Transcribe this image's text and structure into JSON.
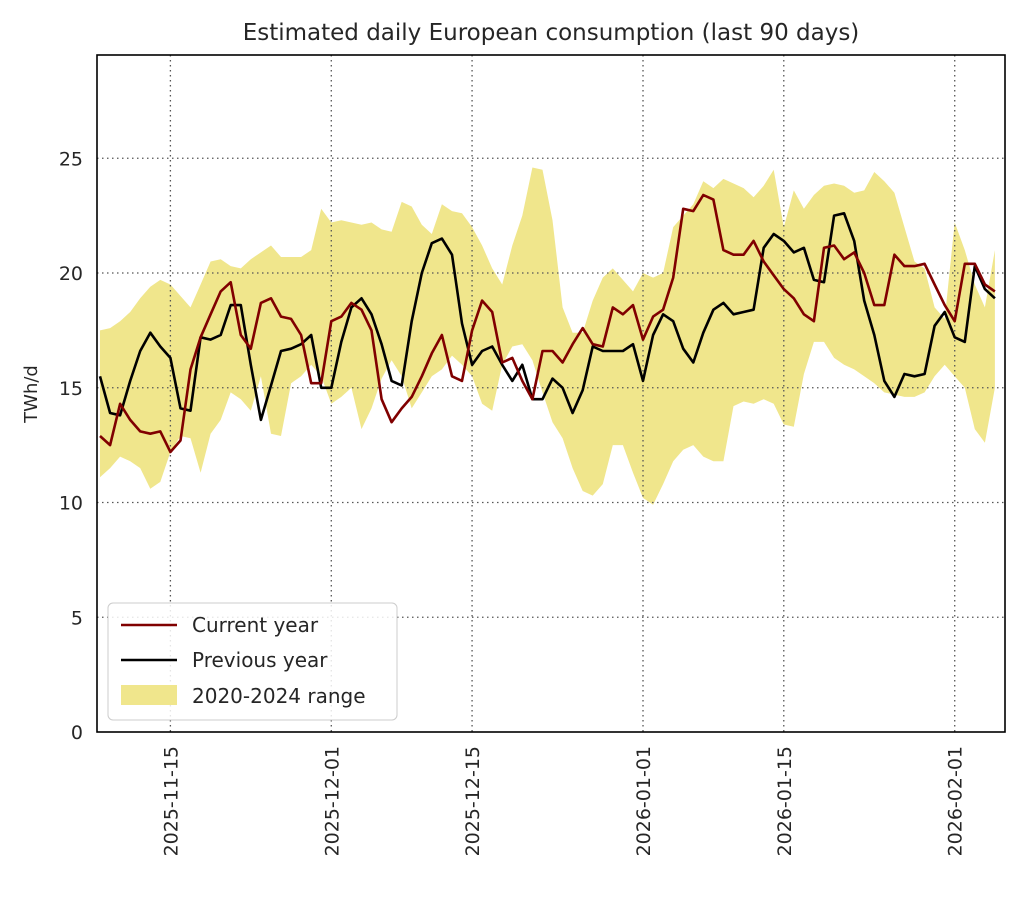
{
  "chart_data": {
    "type": "line",
    "title": "Estimated daily European consumption (last 90 days)",
    "xlabel": "",
    "ylabel": "TWh/d",
    "ylim": [
      0,
      29.5
    ],
    "xlim": [
      "2025-11-08",
      "2026-02-06"
    ],
    "yticks": [
      "0",
      "5",
      "10",
      "15",
      "20",
      "25"
    ],
    "xticks": [
      "2025-11-15",
      "2025-12-01",
      "2025-12-15",
      "2026-01-01",
      "2026-01-15",
      "2026-02-01"
    ],
    "grid": true,
    "legend_position": "bottom-left",
    "x": [
      "2025-11-08",
      "2025-11-09",
      "2025-11-10",
      "2025-11-11",
      "2025-11-12",
      "2025-11-13",
      "2025-11-14",
      "2025-11-15",
      "2025-11-16",
      "2025-11-17",
      "2025-11-18",
      "2025-11-19",
      "2025-11-20",
      "2025-11-21",
      "2025-11-22",
      "2025-11-23",
      "2025-11-24",
      "2025-11-25",
      "2025-11-26",
      "2025-11-27",
      "2025-11-28",
      "2025-11-29",
      "2025-11-30",
      "2025-12-01",
      "2025-12-02",
      "2025-12-03",
      "2025-12-04",
      "2025-12-05",
      "2025-12-06",
      "2025-12-07",
      "2025-12-08",
      "2025-12-09",
      "2025-12-10",
      "2025-12-11",
      "2025-12-12",
      "2025-12-13",
      "2025-12-14",
      "2025-12-15",
      "2025-12-16",
      "2025-12-17",
      "2025-12-18",
      "2025-12-19",
      "2025-12-20",
      "2025-12-21",
      "2025-12-22",
      "2025-12-23",
      "2025-12-24",
      "2025-12-25",
      "2025-12-26",
      "2025-12-27",
      "2025-12-28",
      "2025-12-29",
      "2025-12-30",
      "2025-12-31",
      "2026-01-01",
      "2026-01-02",
      "2026-01-03",
      "2026-01-04",
      "2026-01-05",
      "2026-01-06",
      "2026-01-07",
      "2026-01-08",
      "2026-01-09",
      "2026-01-10",
      "2026-01-11",
      "2026-01-12",
      "2026-01-13",
      "2026-01-14",
      "2026-01-15",
      "2026-01-16",
      "2026-01-17",
      "2026-01-18",
      "2026-01-19",
      "2026-01-20",
      "2026-01-21",
      "2026-01-22",
      "2026-01-23",
      "2026-01-24",
      "2026-01-25",
      "2026-01-26",
      "2026-01-27",
      "2026-01-28",
      "2026-01-29",
      "2026-01-30",
      "2026-01-31",
      "2026-02-01",
      "2026-02-02",
      "2026-02-03",
      "2026-02-04",
      "2026-02-05"
    ],
    "series": [
      {
        "name": "Current year",
        "color": "#800000",
        "values": [
          12.9,
          12.5,
          14.3,
          13.6,
          13.1,
          13.0,
          13.1,
          12.2,
          12.7,
          15.8,
          17.2,
          18.2,
          19.2,
          19.6,
          17.3,
          16.7,
          18.7,
          18.9,
          18.1,
          18.0,
          17.3,
          15.2,
          15.2,
          17.9,
          18.1,
          18.7,
          18.4,
          17.5,
          14.5,
          13.5,
          14.1,
          14.6,
          15.5,
          16.5,
          17.3,
          15.5,
          15.3,
          17.5,
          18.8,
          18.3,
          16.1,
          16.3,
          15.3,
          14.5,
          16.6,
          16.6,
          16.1,
          16.9,
          17.6,
          16.9,
          16.8,
          18.5,
          18.2,
          18.6,
          17.1,
          18.1,
          18.4,
          19.8,
          22.8,
          22.7,
          23.4,
          23.2,
          21.0,
          20.8,
          20.8,
          21.4,
          20.5,
          19.9,
          19.3,
          18.9,
          18.2,
          17.9,
          21.1,
          21.2,
          20.6,
          20.9,
          20.0,
          18.6,
          18.6,
          20.8,
          20.3,
          20.3,
          20.4,
          19.5,
          18.6,
          17.9,
          20.4,
          20.4,
          19.5,
          19.2
        ]
      },
      {
        "name": "Previous year",
        "color": "#000000",
        "values": [
          15.5,
          13.9,
          13.8,
          15.3,
          16.6,
          17.4,
          16.8,
          16.3,
          14.1,
          14.0,
          17.2,
          17.1,
          17.3,
          18.6,
          18.6,
          16.0,
          13.6,
          15.1,
          16.6,
          16.7,
          16.9,
          17.3,
          15.0,
          15.0,
          17.0,
          18.5,
          18.9,
          18.2,
          16.9,
          15.3,
          15.1,
          17.9,
          20.0,
          21.3,
          21.5,
          20.8,
          17.8,
          16.0,
          16.6,
          16.8,
          16.0,
          15.3,
          16.0,
          14.5,
          14.5,
          15.4,
          15.0,
          13.9,
          14.9,
          16.8,
          16.6,
          16.6,
          16.6,
          16.9,
          15.3,
          17.3,
          18.2,
          17.9,
          16.7,
          16.1,
          17.4,
          18.4,
          18.7,
          18.2,
          18.3,
          18.4,
          21.1,
          21.7,
          21.4,
          20.9,
          21.1,
          19.7,
          19.6,
          22.5,
          22.6,
          21.4,
          18.8,
          17.3,
          15.3,
          14.6,
          15.6,
          15.5,
          15.6,
          17.7,
          18.3,
          17.2,
          17.0,
          20.3,
          19.3,
          18.9
        ]
      }
    ],
    "range": {
      "name": "2020-2024 range",
      "color": "#f0e68c",
      "upper": [
        17.5,
        17.6,
        17.9,
        18.3,
        18.9,
        19.4,
        19.7,
        19.5,
        19.0,
        18.5,
        19.5,
        20.5,
        20.6,
        20.3,
        20.2,
        20.6,
        20.9,
        21.2,
        20.7,
        20.7,
        20.7,
        21.0,
        22.8,
        22.2,
        22.3,
        22.2,
        22.1,
        22.2,
        21.9,
        21.8,
        23.1,
        22.9,
        22.1,
        21.7,
        23.0,
        22.7,
        22.6,
        22.0,
        21.2,
        20.2,
        19.5,
        21.2,
        22.5,
        24.6,
        24.5,
        22.3,
        18.5,
        17.4,
        17.4,
        18.8,
        19.8,
        20.2,
        19.7,
        19.2,
        20.0,
        19.8,
        20.0,
        22.0,
        22.5,
        23.0,
        24.0,
        23.7,
        24.1,
        23.9,
        23.7,
        23.3,
        23.8,
        24.5,
        22.0,
        23.6,
        22.8,
        23.4,
        23.8,
        23.9,
        23.8,
        23.5,
        23.6,
        24.4,
        24.0,
        23.5,
        22.0,
        20.5,
        20.2,
        18.5,
        18.0,
        22.2,
        21.0,
        19.5,
        18.5,
        21.0
      ],
      "lower": [
        11.1,
        11.5,
        12.0,
        11.8,
        11.5,
        10.6,
        10.9,
        12.2,
        12.9,
        12.8,
        11.3,
        13.0,
        13.6,
        14.8,
        14.5,
        14.0,
        15.5,
        13.0,
        12.9,
        15.2,
        15.5,
        16.0,
        15.5,
        14.3,
        14.6,
        15.0,
        13.2,
        14.1,
        15.4,
        16.2,
        15.5,
        14.1,
        14.8,
        15.5,
        15.8,
        16.4,
        16.0,
        15.5,
        14.3,
        14.0,
        16.0,
        16.8,
        16.9,
        16.2,
        14.8,
        13.5,
        12.8,
        11.5,
        10.5,
        10.3,
        10.8,
        12.5,
        12.5,
        11.3,
        10.2,
        9.9,
        10.8,
        11.8,
        12.3,
        12.5,
        12.0,
        11.8,
        11.8,
        14.2,
        14.4,
        14.3,
        14.5,
        14.3,
        13.4,
        13.3,
        15.6,
        17.0,
        17.0,
        16.3,
        16.0,
        15.8,
        15.5,
        15.2,
        14.8,
        14.7,
        14.6,
        14.6,
        14.8,
        15.5,
        16.0,
        15.5,
        15.0,
        13.2,
        12.6,
        15.0
      ]
    }
  }
}
